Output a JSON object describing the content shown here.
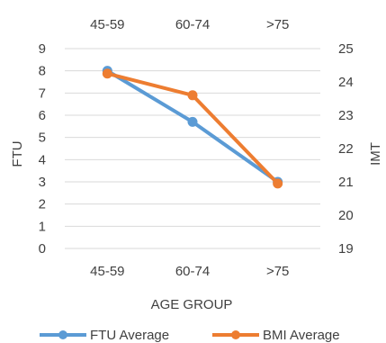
{
  "chart_data": {
    "type": "line",
    "categories": [
      "45-59",
      "60-74",
      ">75"
    ],
    "series": [
      {
        "name": "FTU Average",
        "axis": "left",
        "color": "#5B9BD5",
        "values": [
          8.0,
          5.7,
          3.0
        ]
      },
      {
        "name": "BMI Average",
        "axis": "right",
        "color": "#ED7D31",
        "values": [
          24.25,
          23.6,
          20.95
        ]
      }
    ],
    "xlabel": "AGE GROUP",
    "ylabel_left": "FTU",
    "ylabel_right": "IMT",
    "y_left_ticks": [
      "0",
      "1",
      "2",
      "3",
      "4",
      "5",
      "6",
      "7",
      "8",
      "9"
    ],
    "y_right_ticks": [
      "19",
      "20",
      "21",
      "22",
      "23",
      "24",
      "25"
    ],
    "ylim_left": [
      0,
      9
    ],
    "ylim_right": [
      19,
      25
    ],
    "category_labels_top": true,
    "category_labels_bottom": true,
    "grid": true,
    "legend_position": "bottom"
  }
}
